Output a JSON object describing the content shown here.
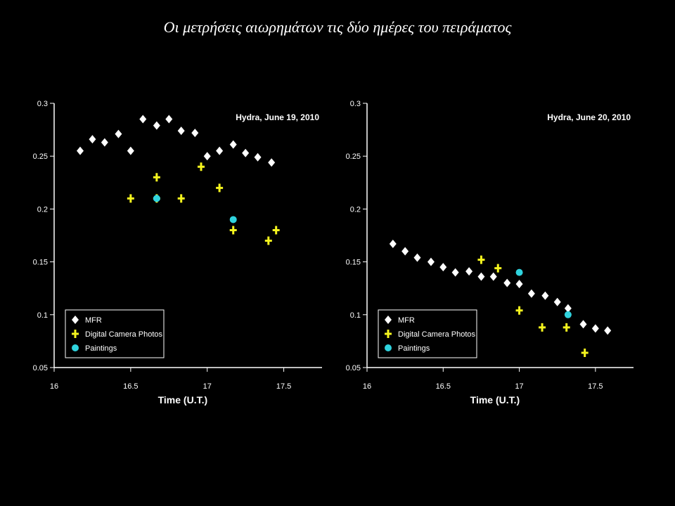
{
  "slide": {
    "title": "Οι μετρήσεις αιωρημάτων τις δύο ημέρες του πειράματος"
  },
  "colors": {
    "background": "#000000",
    "mfr": "#ffffff",
    "camera": "#f5f51e",
    "paintings": "#2fd3de"
  },
  "chart_data": [
    {
      "type": "scatter",
      "annotation": "Hydra, June 19, 2010",
      "xlabel": "Time (U.T.)",
      "ylabel": "",
      "xlim": [
        16,
        17.75
      ],
      "ylim": [
        0.05,
        0.3
      ],
      "xticks": [
        "16",
        "16.5",
        "17",
        "17.5"
      ],
      "yticks": [
        "0.05",
        "0.1",
        "0.15",
        "0.2",
        "0.25",
        "0.3"
      ],
      "legend_position": "bottom-left",
      "series": [
        {
          "name": "MFR",
          "marker": "diamond",
          "x": [
            16.17,
            16.25,
            16.33,
            16.42,
            16.5,
            16.58,
            16.67,
            16.75,
            16.83,
            16.92,
            17.0,
            17.08,
            17.17,
            17.25,
            17.33,
            17.42
          ],
          "y": [
            0.255,
            0.266,
            0.263,
            0.271,
            0.255,
            0.285,
            0.279,
            0.285,
            0.274,
            0.272,
            0.25,
            0.255,
            0.261,
            0.253,
            0.249,
            0.244
          ]
        },
        {
          "name": "Digital Camera Photos",
          "marker": "plus",
          "x": [
            16.5,
            16.67,
            16.67,
            16.83,
            16.96,
            17.08,
            17.17,
            17.4,
            17.45
          ],
          "y": [
            0.21,
            0.23,
            0.21,
            0.21,
            0.24,
            0.22,
            0.18,
            0.17,
            0.18
          ]
        },
        {
          "name": "Paintings",
          "marker": "dot",
          "x": [
            16.67,
            17.17
          ],
          "y": [
            0.21,
            0.19
          ]
        }
      ]
    },
    {
      "type": "scatter",
      "annotation": "Hydra, June 20, 2010",
      "xlabel": "Time (U.T.)",
      "ylabel": "",
      "xlim": [
        16,
        17.75
      ],
      "ylim": [
        0.05,
        0.3
      ],
      "xticks": [
        "16",
        "16.5",
        "17",
        "17.5"
      ],
      "yticks": [
        "0.05",
        "0.1",
        "0.15",
        "0.2",
        "0.25",
        "0.3"
      ],
      "legend_position": "bottom-left",
      "series": [
        {
          "name": "MFR",
          "marker": "diamond",
          "x": [
            16.17,
            16.25,
            16.33,
            16.42,
            16.5,
            16.58,
            16.67,
            16.75,
            16.83,
            16.92,
            17.0,
            17.08,
            17.17,
            17.25,
            17.32,
            17.42,
            17.5,
            17.58
          ],
          "y": [
            0.167,
            0.16,
            0.154,
            0.15,
            0.145,
            0.14,
            0.141,
            0.136,
            0.136,
            0.13,
            0.129,
            0.12,
            0.118,
            0.112,
            0.106,
            0.091,
            0.087,
            0.085
          ]
        },
        {
          "name": "Digital Camera Photos",
          "marker": "plus",
          "x": [
            16.75,
            16.86,
            17.0,
            17.15,
            17.31,
            17.43
          ],
          "y": [
            0.152,
            0.144,
            0.104,
            0.088,
            0.088,
            0.064
          ]
        },
        {
          "name": "Paintings",
          "marker": "dot",
          "x": [
            17.0,
            17.32
          ],
          "y": [
            0.14,
            0.1
          ]
        }
      ]
    }
  ]
}
